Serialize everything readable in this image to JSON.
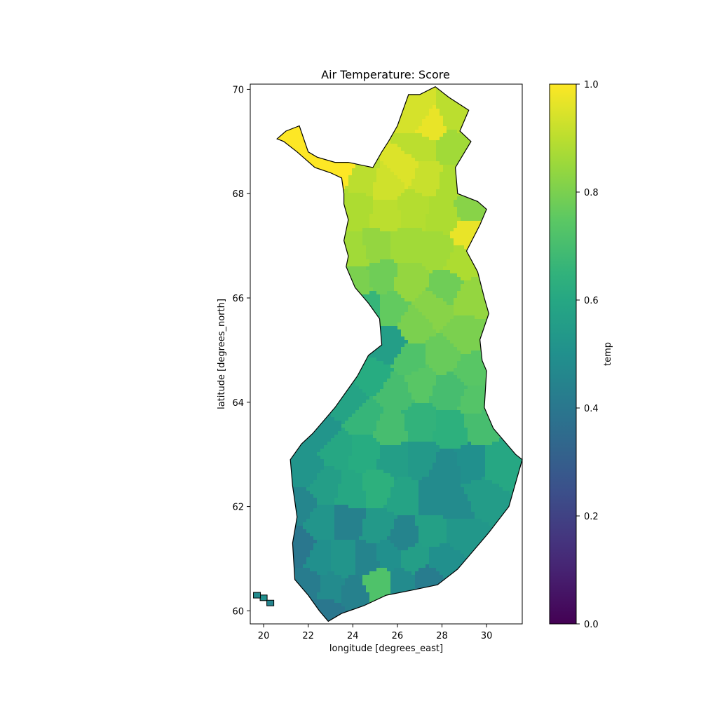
{
  "chart_data": {
    "type": "heatmap",
    "title": "Air Temperature: Score",
    "xlabel": "longitude [degrees_east]",
    "ylabel": "latitude [degrees_north]",
    "xlim": [
      19.4,
      31.6
    ],
    "ylim": [
      59.75,
      70.1
    ],
    "xticks": [
      20,
      22,
      24,
      26,
      28,
      30
    ],
    "yticks": [
      60,
      62,
      64,
      66,
      68,
      70
    ],
    "colorbar": {
      "label": "temp",
      "colormap": "viridis",
      "range": [
        0.0,
        1.0
      ],
      "ticks": [
        "0.0",
        "0.2",
        "0.4",
        "0.6",
        "0.8",
        "1.0"
      ]
    },
    "outline": [
      [
        20.6,
        69.05
      ],
      [
        21.0,
        69.2
      ],
      [
        21.6,
        69.3
      ],
      [
        22.0,
        68.8
      ],
      [
        22.4,
        68.7
      ],
      [
        23.2,
        68.6
      ],
      [
        23.8,
        68.6
      ],
      [
        24.9,
        68.5
      ],
      [
        25.3,
        68.8
      ],
      [
        25.6,
        69.0
      ],
      [
        26.0,
        69.3
      ],
      [
        26.5,
        69.9
      ],
      [
        27.0,
        69.9
      ],
      [
        27.7,
        70.05
      ],
      [
        28.3,
        69.85
      ],
      [
        29.2,
        69.6
      ],
      [
        28.8,
        69.2
      ],
      [
        29.3,
        69.0
      ],
      [
        28.6,
        68.5
      ],
      [
        28.7,
        68.0
      ],
      [
        29.6,
        67.85
      ],
      [
        30.0,
        67.7
      ],
      [
        29.7,
        67.4
      ],
      [
        29.1,
        66.9
      ],
      [
        29.6,
        66.5
      ],
      [
        29.9,
        66.0
      ],
      [
        30.1,
        65.7
      ],
      [
        29.7,
        65.2
      ],
      [
        29.8,
        64.8
      ],
      [
        30.0,
        64.6
      ],
      [
        29.9,
        63.9
      ],
      [
        30.3,
        63.5
      ],
      [
        31.3,
        63.0
      ],
      [
        31.6,
        62.9
      ],
      [
        31.0,
        62.0
      ],
      [
        30.1,
        61.5
      ],
      [
        29.3,
        61.1
      ],
      [
        28.7,
        60.8
      ],
      [
        27.8,
        60.5
      ],
      [
        26.7,
        60.4
      ],
      [
        25.5,
        60.3
      ],
      [
        24.5,
        60.1
      ],
      [
        23.5,
        59.95
      ],
      [
        22.9,
        59.8
      ],
      [
        22.5,
        60.0
      ],
      [
        22.0,
        60.3
      ],
      [
        21.4,
        60.6
      ],
      [
        21.3,
        61.3
      ],
      [
        21.5,
        61.8
      ],
      [
        21.3,
        62.4
      ],
      [
        21.2,
        62.9
      ],
      [
        21.7,
        63.2
      ],
      [
        22.2,
        63.4
      ],
      [
        22.6,
        63.6
      ],
      [
        23.2,
        63.9
      ],
      [
        24.2,
        64.5
      ],
      [
        24.7,
        64.9
      ],
      [
        25.3,
        65.1
      ],
      [
        25.2,
        65.6
      ],
      [
        24.7,
        65.9
      ],
      [
        24.5,
        66.0
      ],
      [
        24.1,
        66.2
      ],
      [
        23.7,
        66.6
      ],
      [
        23.8,
        66.8
      ],
      [
        23.6,
        67.1
      ],
      [
        23.8,
        67.5
      ],
      [
        23.6,
        67.8
      ],
      [
        23.6,
        68.0
      ],
      [
        23.5,
        68.3
      ],
      [
        23.0,
        68.4
      ],
      [
        22.3,
        68.5
      ],
      [
        21.5,
        68.8
      ],
      [
        20.9,
        69.0
      ]
    ],
    "values": [
      {
        "lon": 21.5,
        "lat": 69.05,
        "v": 1.0
      },
      {
        "lon": 22.5,
        "lat": 68.7,
        "v": 1.0
      },
      {
        "lon": 23.4,
        "lat": 68.5,
        "v": 1.0
      },
      {
        "lon": 24.5,
        "lat": 68.3,
        "v": 0.9
      },
      {
        "lon": 25.5,
        "lat": 68.2,
        "v": 0.93
      },
      {
        "lon": 26.3,
        "lat": 68.5,
        "v": 0.95
      },
      {
        "lon": 27.5,
        "lat": 69.3,
        "v": 0.97
      },
      {
        "lon": 28.6,
        "lat": 69.5,
        "v": 0.9
      },
      {
        "lon": 26.8,
        "lat": 69.5,
        "v": 0.94
      },
      {
        "lon": 27.0,
        "lat": 68.9,
        "v": 0.9
      },
      {
        "lon": 28.4,
        "lat": 68.9,
        "v": 0.86
      },
      {
        "lon": 27.3,
        "lat": 68.3,
        "v": 0.92
      },
      {
        "lon": 28.5,
        "lat": 68.2,
        "v": 0.88
      },
      {
        "lon": 29.3,
        "lat": 67.8,
        "v": 0.82
      },
      {
        "lon": 24.2,
        "lat": 67.7,
        "v": 0.88
      },
      {
        "lon": 25.5,
        "lat": 67.6,
        "v": 0.9
      },
      {
        "lon": 26.7,
        "lat": 67.7,
        "v": 0.89
      },
      {
        "lon": 28.0,
        "lat": 67.6,
        "v": 0.88
      },
      {
        "lon": 29.3,
        "lat": 67.2,
        "v": 0.97
      },
      {
        "lon": 24.1,
        "lat": 66.9,
        "v": 0.86
      },
      {
        "lon": 25.0,
        "lat": 67.0,
        "v": 0.84
      },
      {
        "lon": 26.4,
        "lat": 67.0,
        "v": 0.86
      },
      {
        "lon": 27.8,
        "lat": 66.9,
        "v": 0.86
      },
      {
        "lon": 28.9,
        "lat": 66.7,
        "v": 0.88
      },
      {
        "lon": 24.2,
        "lat": 66.3,
        "v": 0.8
      },
      {
        "lon": 25.3,
        "lat": 66.4,
        "v": 0.78
      },
      {
        "lon": 26.5,
        "lat": 66.3,
        "v": 0.84
      },
      {
        "lon": 28.2,
        "lat": 66.2,
        "v": 0.78
      },
      {
        "lon": 29.2,
        "lat": 66.0,
        "v": 0.84
      },
      {
        "lon": 24.8,
        "lat": 65.8,
        "v": 0.66
      },
      {
        "lon": 25.7,
        "lat": 65.8,
        "v": 0.76
      },
      {
        "lon": 26.8,
        "lat": 65.5,
        "v": 0.8
      },
      {
        "lon": 27.6,
        "lat": 65.8,
        "v": 0.82
      },
      {
        "lon": 29.0,
        "lat": 65.3,
        "v": 0.8
      },
      {
        "lon": 25.6,
        "lat": 65.1,
        "v": 0.56
      },
      {
        "lon": 26.6,
        "lat": 64.8,
        "v": 0.72
      },
      {
        "lon": 28.0,
        "lat": 64.9,
        "v": 0.77
      },
      {
        "lon": 29.4,
        "lat": 64.6,
        "v": 0.74
      },
      {
        "lon": 24.9,
        "lat": 64.5,
        "v": 0.62
      },
      {
        "lon": 25.9,
        "lat": 64.2,
        "v": 0.7
      },
      {
        "lon": 27.0,
        "lat": 64.4,
        "v": 0.74
      },
      {
        "lon": 28.3,
        "lat": 64.2,
        "v": 0.7
      },
      {
        "lon": 29.5,
        "lat": 64.0,
        "v": 0.73
      },
      {
        "lon": 23.8,
        "lat": 64.0,
        "v": 0.58
      },
      {
        "lon": 24.5,
        "lat": 63.7,
        "v": 0.66
      },
      {
        "lon": 25.7,
        "lat": 63.5,
        "v": 0.7
      },
      {
        "lon": 27.0,
        "lat": 63.6,
        "v": 0.65
      },
      {
        "lon": 28.4,
        "lat": 63.5,
        "v": 0.64
      },
      {
        "lon": 29.7,
        "lat": 63.6,
        "v": 0.7
      },
      {
        "lon": 22.6,
        "lat": 63.4,
        "v": 0.52
      },
      {
        "lon": 23.3,
        "lat": 63.1,
        "v": 0.6
      },
      {
        "lon": 24.5,
        "lat": 63.0,
        "v": 0.62
      },
      {
        "lon": 25.8,
        "lat": 62.9,
        "v": 0.56
      },
      {
        "lon": 27.0,
        "lat": 62.9,
        "v": 0.54
      },
      {
        "lon": 28.2,
        "lat": 62.7,
        "v": 0.48
      },
      {
        "lon": 29.3,
        "lat": 62.8,
        "v": 0.5
      },
      {
        "lon": 30.6,
        "lat": 62.8,
        "v": 0.6
      },
      {
        "lon": 21.9,
        "lat": 62.7,
        "v": 0.52
      },
      {
        "lon": 22.8,
        "lat": 62.4,
        "v": 0.56
      },
      {
        "lon": 23.9,
        "lat": 62.3,
        "v": 0.6
      },
      {
        "lon": 25.1,
        "lat": 62.4,
        "v": 0.64
      },
      {
        "lon": 26.3,
        "lat": 62.2,
        "v": 0.58
      },
      {
        "lon": 27.5,
        "lat": 62.2,
        "v": 0.48
      },
      {
        "lon": 28.7,
        "lat": 62.0,
        "v": 0.48
      },
      {
        "lon": 29.7,
        "lat": 62.2,
        "v": 0.55
      },
      {
        "lon": 21.6,
        "lat": 62.0,
        "v": 0.46
      },
      {
        "lon": 22.6,
        "lat": 61.7,
        "v": 0.52
      },
      {
        "lon": 23.8,
        "lat": 61.7,
        "v": 0.44
      },
      {
        "lon": 25.1,
        "lat": 61.6,
        "v": 0.54
      },
      {
        "lon": 26.3,
        "lat": 61.4,
        "v": 0.45
      },
      {
        "lon": 27.6,
        "lat": 61.5,
        "v": 0.57
      },
      {
        "lon": 28.8,
        "lat": 61.5,
        "v": 0.53
      },
      {
        "lon": 21.6,
        "lat": 61.2,
        "v": 0.4
      },
      {
        "lon": 22.5,
        "lat": 61.0,
        "v": 0.5
      },
      {
        "lon": 23.6,
        "lat": 61.0,
        "v": 0.52
      },
      {
        "lon": 24.6,
        "lat": 61.0,
        "v": 0.45
      },
      {
        "lon": 25.6,
        "lat": 61.1,
        "v": 0.5
      },
      {
        "lon": 26.8,
        "lat": 61.0,
        "v": 0.56
      },
      {
        "lon": 28.0,
        "lat": 61.0,
        "v": 0.5
      },
      {
        "lon": 22.0,
        "lat": 60.5,
        "v": 0.42
      },
      {
        "lon": 23.0,
        "lat": 60.4,
        "v": 0.48
      },
      {
        "lon": 24.0,
        "lat": 60.3,
        "v": 0.44
      },
      {
        "lon": 25.2,
        "lat": 60.5,
        "v": 0.72
      },
      {
        "lon": 26.3,
        "lat": 60.5,
        "v": 0.48
      },
      {
        "lon": 27.3,
        "lat": 60.6,
        "v": 0.42
      },
      {
        "lon": 22.9,
        "lat": 60.0,
        "v": 0.4
      }
    ],
    "islands": [
      {
        "lon": 20.0,
        "lat": 60.25,
        "v": 0.5
      },
      {
        "lon": 19.7,
        "lat": 60.3,
        "v": 0.48
      },
      {
        "lon": 20.3,
        "lat": 60.15,
        "v": 0.45
      }
    ]
  }
}
